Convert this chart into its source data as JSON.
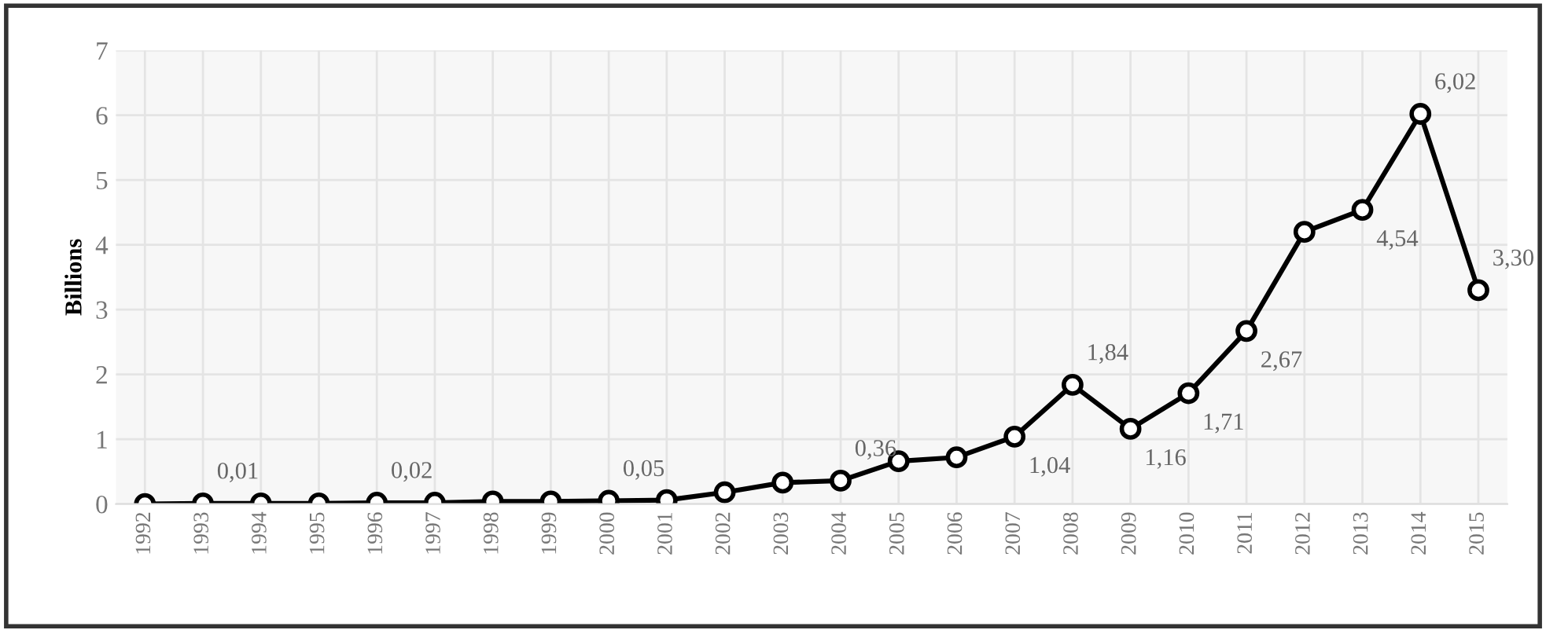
{
  "chart_data": {
    "type": "line",
    "ylabel": "Billions",
    "categories": [
      "1992",
      "1993",
      "1994",
      "1995",
      "1996",
      "1997",
      "1998",
      "1999",
      "2000",
      "2001",
      "2002",
      "2003",
      "2004",
      "2005",
      "2006",
      "2007",
      "2008",
      "2009",
      "2010",
      "2011",
      "2012",
      "2013",
      "2014",
      "2015"
    ],
    "series": [
      {
        "color": "#000000",
        "values": [
          0,
          0.01,
          0.01,
          0.01,
          0.02,
          0.02,
          0.04,
          0.04,
          0.05,
          0.06,
          0.18,
          0.33,
          0.36,
          0.66,
          0.72,
          1.04,
          1.84,
          1.16,
          1.71,
          2.67,
          4.2,
          4.54,
          6.02,
          3.3
        ],
        "value_labels": [
          null,
          "0,01",
          null,
          null,
          "0,02",
          null,
          null,
          null,
          "0,05",
          null,
          null,
          null,
          "0,36",
          null,
          null,
          "1,04",
          "1,84",
          "1,16",
          "1,71",
          "2,67",
          null,
          "4,54",
          "6,02",
          "3,30"
        ]
      }
    ],
    "ylim": [
      0,
      7
    ],
    "yticks": [
      0,
      1,
      2,
      3,
      4,
      5,
      6,
      7
    ],
    "grid": true,
    "marker": "circle",
    "line_style": "solid"
  }
}
